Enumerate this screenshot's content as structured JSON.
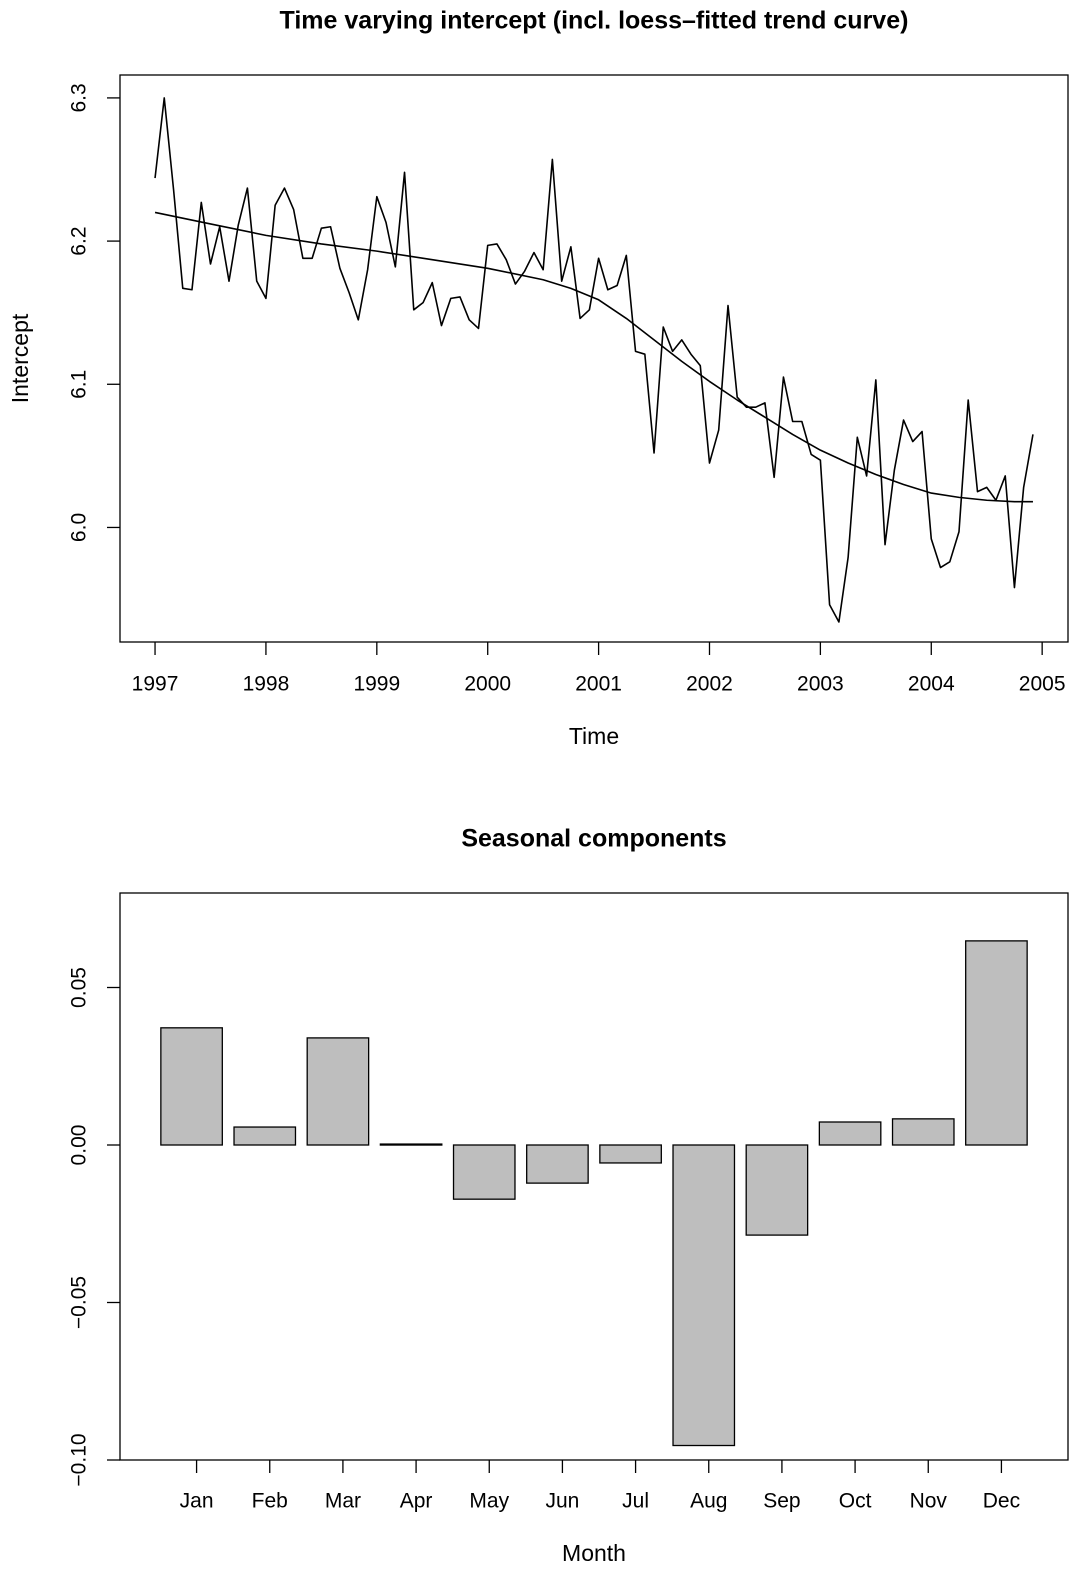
{
  "chart_data": [
    {
      "type": "line",
      "title": "Time varying intercept (incl. loess–fitted trend curve)",
      "x_label": "Time",
      "y_label": "Intercept",
      "xlim": [
        1996.684,
        2005.233
      ],
      "ylim": [
        5.92,
        6.316
      ],
      "xticks": [
        1997,
        1998,
        1999,
        2000,
        2001,
        2002,
        2003,
        2004,
        2005
      ],
      "yticks": [
        {
          "value": 6,
          "label": "6.0"
        },
        6.1,
        6.2,
        6.3
      ],
      "color": "#000000",
      "series": [
        {
          "x": [
            1997,
            1997.083,
            1997.167,
            1997.25,
            1997.333,
            1997.417,
            1997.5,
            1997.583,
            1997.667,
            1997.75,
            1997.833,
            1997.917,
            1998,
            1998.083,
            1998.167,
            1998.25,
            1998.333,
            1998.417,
            1998.5,
            1998.583,
            1998.667,
            1998.75,
            1998.833,
            1998.917,
            1999,
            1999.083,
            1999.167,
            1999.25,
            1999.333,
            1999.417,
            1999.5,
            1999.583,
            1999.667,
            1999.75,
            1999.833,
            1999.917,
            2000,
            2000.083,
            2000.167,
            2000.25,
            2000.333,
            2000.417,
            2000.5,
            2000.583,
            2000.667,
            2000.75,
            2000.833,
            2000.917,
            2001,
            2001.083,
            2001.167,
            2001.25,
            2001.333,
            2001.417,
            2001.5,
            2001.583,
            2001.667,
            2001.75,
            2001.833,
            2001.917,
            2002,
            2002.083,
            2002.167,
            2002.25,
            2002.333,
            2002.417,
            2002.5,
            2002.583,
            2002.667,
            2002.75,
            2002.833,
            2002.917,
            2003,
            2003.083,
            2003.167,
            2003.25,
            2003.333,
            2003.417,
            2003.5,
            2003.583,
            2003.667,
            2003.75,
            2003.833,
            2003.917,
            2004,
            2004.083,
            2004.167,
            2004.25,
            2004.333,
            2004.417,
            2004.5,
            2004.583,
            2004.667,
            2004.75,
            2004.833,
            2004.917
          ],
          "values": [
            6.244,
            6.3,
            6.236,
            6.167,
            6.166,
            6.227,
            6.184,
            6.21,
            6.172,
            6.211,
            6.237,
            6.172,
            6.16,
            6.225,
            6.237,
            6.222,
            6.188,
            6.188,
            6.209,
            6.21,
            6.181,
            6.164,
            6.145,
            6.18,
            6.231,
            6.213,
            6.182,
            6.248,
            6.152,
            6.157,
            6.171,
            6.141,
            6.16,
            6.161,
            6.145,
            6.139,
            6.197,
            6.198,
            6.187,
            6.17,
            6.179,
            6.192,
            6.18,
            6.257,
            6.172,
            6.196,
            6.146,
            6.152,
            6.188,
            6.166,
            6.169,
            6.19,
            6.123,
            6.121,
            6.052,
            6.14,
            6.123,
            6.131,
            6.121,
            6.113,
            6.045,
            6.068,
            6.155,
            6.091,
            6.084,
            6.084,
            6.087,
            6.035,
            6.105,
            6.074,
            6.074,
            6.051,
            6.047,
            5.946,
            5.934,
            5.979,
            6.063,
            6.036,
            6.103,
            5.988,
            6.04,
            6.075,
            6.06,
            6.067,
            5.992,
            5.972,
            5.976,
            5.997,
            6.089,
            6.025,
            6.028,
            6.019,
            6.036,
            5.958,
            6.028,
            6.065
          ]
        },
        {
          "x": [
            1997,
            1997.5,
            1998,
            1998.5,
            1999,
            1999.5,
            2000,
            2000.5,
            2000.75,
            2001,
            2001.25,
            2001.5,
            2001.75,
            2002,
            2002.25,
            2002.5,
            2002.75,
            2003,
            2003.25,
            2003.5,
            2003.75,
            2004,
            2004.25,
            2004.5,
            2004.75,
            2004.917
          ],
          "values": [
            6.22,
            6.212,
            6.204,
            6.198,
            6.193,
            6.187,
            6.181,
            6.173,
            6.167,
            6.159,
            6.146,
            6.131,
            6.116,
            6.102,
            6.089,
            6.077,
            6.065,
            6.054,
            6.045,
            6.037,
            6.03,
            6.024,
            6.021,
            6.019,
            6.018,
            6.018
          ]
        }
      ]
    },
    {
      "type": "bar",
      "title": "Seasonal components",
      "x_label": "Month",
      "categories": [
        "Jan",
        "Feb",
        "Mar",
        "Apr",
        "May",
        "Jun",
        "Jul",
        "Aug",
        "Sep",
        "Oct",
        "Nov",
        "Dec"
      ],
      "values": [
        0.0372,
        0.0057,
        0.034,
        0.0003,
        -0.0172,
        -0.0121,
        -0.0057,
        -0.0954,
        -0.0286,
        0.0073,
        0.0083,
        0.0648
      ],
      "ylim": [
        -0.1,
        0.08
      ],
      "yticks": [
        {
          "value": -0.1,
          "label": "−0.10"
        },
        {
          "value": -0.05,
          "label": "−0.05"
        },
        {
          "value": 0,
          "label": "0.00"
        },
        {
          "value": 0.05,
          "label": "0.05"
        }
      ],
      "color": "#bebebe"
    }
  ]
}
